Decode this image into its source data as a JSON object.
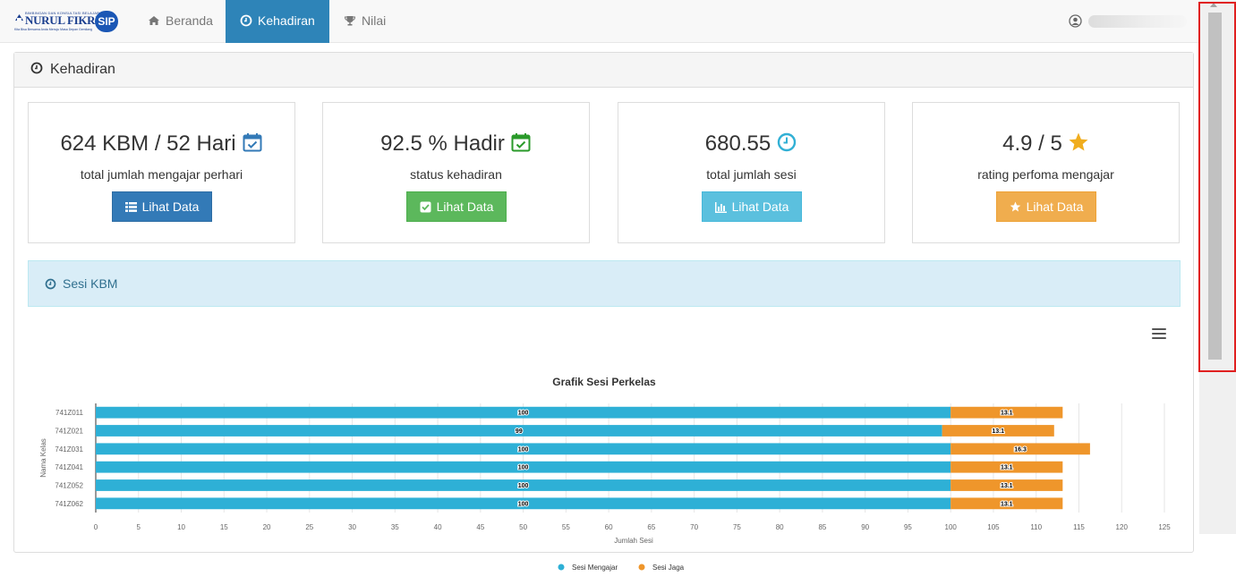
{
  "navbar": {
    "brand": {
      "tagline_top": "BIMBINGAN DAN KONSULTASI BELAJAR",
      "name": "NURUL FIKRI",
      "badge": "SIP",
      "tagline_bottom": "Kita Bisa Bersama Anda Menuju Masa Depan Gemilang"
    },
    "items": [
      {
        "label": "Beranda",
        "icon": "home-icon",
        "active": false
      },
      {
        "label": "Kehadiran",
        "icon": "clock-icon",
        "active": true
      },
      {
        "label": "Nilai",
        "icon": "trophy-icon",
        "active": false
      }
    ],
    "user_icon": "user-circle-icon"
  },
  "panel": {
    "title": "Kehadiran",
    "cards": [
      {
        "value": "624 KBM / 52 Hari",
        "icon": "calendar-check-icon",
        "icon_color": "#337ab7",
        "label": "total jumlah mengajar perhari",
        "button": "Lihat Data",
        "button_icon": "list-icon",
        "button_color": "#337ab7"
      },
      {
        "value": "92.5 % Hadir",
        "icon": "calendar-check-icon",
        "icon_color": "#2a9a2a",
        "label": "status kehadiran",
        "button": "Lihat Data",
        "button_icon": "check-square-icon",
        "button_color": "#5cb85c"
      },
      {
        "value": "680.55",
        "icon": "clock-icon",
        "icon_color": "#31b0d5",
        "label": "total jumlah sesi",
        "button": "Lihat Data",
        "button_icon": "bar-chart-icon",
        "button_color": "#5bc0de"
      },
      {
        "value": "4.9 / 5",
        "icon": "star-icon",
        "icon_color": "#f0ad1e",
        "label": "rating perfoma mengajar",
        "button": "Lihat Data",
        "button_icon": "star-icon",
        "button_color": "#f0ad4e"
      }
    ],
    "section_title": "Sesi KBM"
  },
  "chart_data": {
    "type": "bar",
    "orientation": "horizontal",
    "stacked": true,
    "title": "Grafik Sesi Perkelas",
    "xlabel": "Jumlah Sesi",
    "ylabel": "Nama Kelas",
    "categories": [
      "741Z011",
      "741Z021",
      "741Z031",
      "741Z041",
      "741Z052",
      "741Z062"
    ],
    "series": [
      {
        "name": "Sesi Mengajar",
        "color": "#2eb0d6",
        "values": [
          100,
          99,
          100,
          100,
          100,
          100
        ]
      },
      {
        "name": "Sesi Jaga",
        "color": "#ef962b",
        "values": [
          13.1,
          13.1,
          16.3,
          13.1,
          13.1,
          13.1
        ]
      }
    ],
    "xlim": [
      0,
      125
    ],
    "xticks": [
      0,
      5,
      10,
      15,
      20,
      25,
      30,
      35,
      40,
      45,
      50,
      55,
      60,
      65,
      70,
      75,
      80,
      85,
      90,
      95,
      100,
      105,
      110,
      115,
      120,
      125
    ],
    "grid": "vertical",
    "legend": "bottom-center"
  }
}
